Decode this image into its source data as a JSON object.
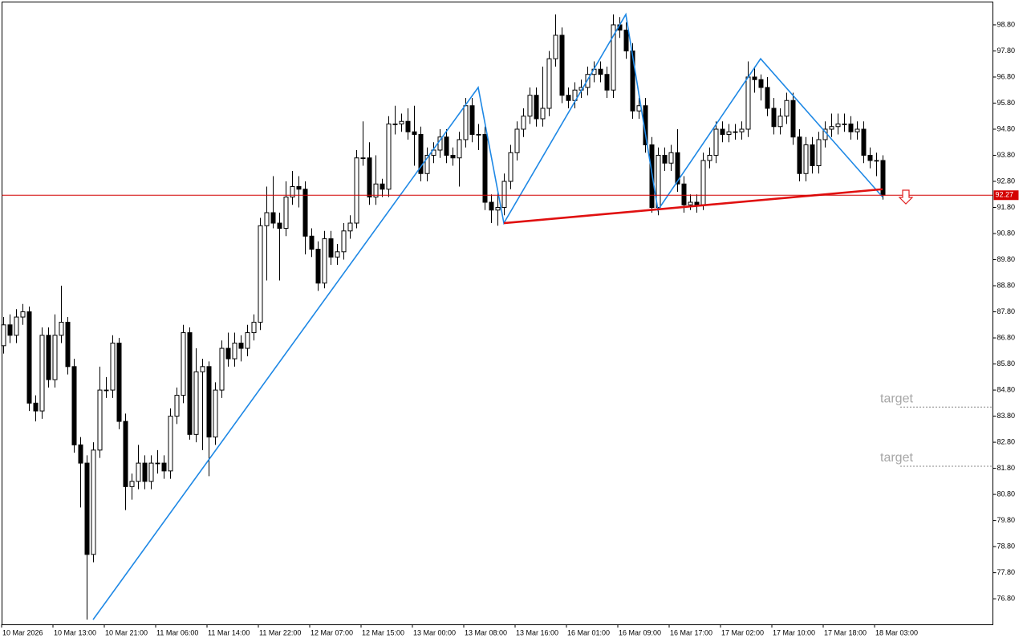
{
  "chart_data": {
    "type": "candlestick",
    "candle_color": "#000000",
    "categories": [
      "10 Mar 2026",
      null,
      null,
      null,
      null,
      null,
      null,
      null,
      "10 Mar 13:00",
      null,
      null,
      null,
      null,
      null,
      null,
      null,
      "10 Mar 21:00",
      null,
      null,
      null,
      null,
      null,
      null,
      null,
      "11 Mar 06:00",
      null,
      null,
      null,
      null,
      null,
      null,
      null,
      "11 Mar 14:00",
      null,
      null,
      null,
      null,
      null,
      null,
      null,
      "11 Mar 22:00",
      null,
      null,
      null,
      null,
      null,
      null,
      null,
      "12 Mar 07:00",
      null,
      null,
      null,
      null,
      null,
      null,
      null,
      "12 Mar 15:00",
      null,
      null,
      null,
      null,
      null,
      null,
      null,
      "13 Mar 00:00",
      null,
      null,
      null,
      null,
      null,
      null,
      null,
      "13 Mar 08:00",
      null,
      null,
      null,
      null,
      null,
      null,
      null,
      "13 Mar 16:00",
      null,
      null,
      null,
      null,
      null,
      null,
      null,
      "16 Mar 01:00",
      null,
      null,
      null,
      null,
      null,
      null,
      null,
      "16 Mar 09:00",
      null,
      null,
      null,
      null,
      null,
      null,
      null,
      "16 Mar 17:00",
      null,
      null,
      null,
      null,
      null,
      null,
      null,
      "17 Mar 02:00",
      null,
      null,
      null,
      null,
      null,
      null,
      null,
      "17 Mar 10:00",
      null,
      null,
      null,
      null,
      null,
      null,
      null,
      "17 Mar 18:00",
      null,
      null,
      null,
      null,
      null,
      null,
      null,
      "18 Mar 03:00",
      null
    ],
    "open": [
      86.5,
      87.3,
      86.9,
      87.6,
      87.8,
      84.3,
      84.0,
      86.9,
      85.2,
      86.9,
      87.4,
      85.7,
      82.7,
      82.0,
      78.5,
      82.5,
      84.8,
      84.8,
      86.6,
      83.6,
      81.1,
      81.3,
      82.0,
      81.3,
      82.0,
      82.0,
      81.7,
      83.8,
      84.6,
      87.0,
      83.1,
      85.5,
      85.7,
      83.0,
      84.8,
      86.4,
      86.0,
      86.6,
      86.4,
      87.0,
      87.4,
      91.1,
      91.6,
      91.2,
      91.0,
      92.2,
      92.6,
      92.5,
      90.7,
      90.2,
      88.9,
      90.6,
      89.9,
      90.1,
      90.9,
      91.2,
      93.7,
      93.7,
      92.2,
      92.7,
      92.5,
      95.0,
      95.0,
      95.1,
      94.7,
      94.6,
      93.1,
      93.8,
      94.0,
      94.5,
      93.8,
      93.7,
      94.4,
      95.7,
      94.6,
      94.6,
      92.0,
      91.7,
      91.8,
      92.8,
      93.9,
      94.8,
      95.3,
      96.1,
      95.2,
      95.6,
      97.5,
      98.4,
      96.1,
      95.9,
      96.3,
      96.4,
      96.9,
      97.1,
      96.9,
      96.3,
      98.8,
      98.6,
      97.8,
      95.5,
      95.7,
      94.2,
      91.8,
      93.8,
      93.5,
      93.9,
      92.7,
      91.9,
      92.0,
      91.9,
      93.6,
      93.8,
      94.8,
      94.6,
      94.7,
      94.7,
      94.8,
      96.8,
      96.7,
      96.4,
      95.6,
      94.9,
      95.3,
      95.9,
      94.5,
      93.1,
      94.2,
      93.4,
      94.4,
      94.8,
      94.9,
      95.0,
      95.0,
      94.7,
      94.8,
      93.8,
      93.6,
      93.6
    ],
    "high": [
      87.6,
      87.7,
      87.9,
      88.1,
      88.0,
      84.6,
      87.2,
      87.2,
      87.7,
      88.8,
      87.6,
      86.0,
      83.0,
      82.3,
      82.8,
      85.7,
      85.3,
      86.9,
      86.8,
      83.9,
      81.6,
      82.7,
      82.3,
      82.3,
      82.5,
      82.3,
      84.1,
      84.9,
      87.3,
      87.2,
      86.4,
      86.0,
      85.9,
      85.1,
      86.7,
      87.0,
      87.0,
      86.9,
      87.3,
      87.7,
      91.4,
      92.6,
      93.0,
      91.6,
      92.8,
      93.2,
      93.0,
      92.8,
      91.0,
      90.5,
      90.9,
      90.9,
      90.4,
      91.2,
      91.5,
      94.0,
      95.1,
      94.3,
      93.8,
      92.9,
      95.3,
      95.7,
      95.4,
      95.6,
      95.7,
      94.9,
      94.1,
      94.3,
      94.8,
      94.8,
      94.1,
      94.7,
      96.0,
      96.0,
      95.0,
      94.9,
      92.3,
      92.4,
      93.1,
      94.2,
      95.1,
      95.6,
      96.4,
      96.4,
      97.2,
      97.8,
      99.2,
      98.7,
      96.4,
      96.6,
      96.7,
      97.2,
      97.4,
      97.4,
      97.2,
      99.2,
      99.1,
      98.9,
      98.1,
      96.0,
      96.0,
      94.5,
      94.1,
      94.1,
      94.2,
      94.8,
      93.0,
      92.3,
      92.3,
      93.9,
      94.1,
      95.1,
      95.1,
      95.0,
      95.0,
      95.1,
      97.4,
      97.2,
      96.9,
      96.8,
      96.0,
      95.6,
      96.2,
      96.2,
      94.8,
      94.5,
      94.5,
      94.7,
      95.1,
      95.4,
      95.4,
      95.4,
      95.3,
      95.1,
      95.1,
      94.1,
      93.9,
      93.8
    ],
    "low": [
      86.2,
      86.6,
      86.6,
      87.3,
      84.0,
      83.6,
      83.7,
      84.9,
      84.9,
      86.6,
      85.4,
      82.4,
      80.3,
      76.0,
      78.2,
      82.2,
      84.5,
      84.5,
      83.3,
      80.2,
      80.6,
      81.0,
      81.0,
      81.0,
      81.6,
      81.4,
      81.4,
      83.5,
      84.3,
      82.9,
      82.8,
      82.5,
      81.5,
      82.7,
      84.5,
      85.7,
      85.7,
      85.9,
      86.1,
      86.7,
      87.1,
      89.0,
      91.0,
      89.0,
      90.7,
      91.9,
      91.8,
      90.0,
      89.9,
      88.6,
      88.7,
      89.6,
      89.6,
      89.8,
      90.6,
      91.0,
      93.4,
      91.9,
      91.9,
      92.2,
      92.2,
      94.6,
      94.7,
      94.4,
      93.4,
      92.8,
      92.8,
      93.5,
      93.7,
      93.5,
      93.4,
      92.6,
      94.1,
      94.3,
      94.0,
      91.7,
      91.2,
      91.1,
      91.5,
      92.5,
      93.6,
      94.5,
      95.0,
      94.9,
      94.9,
      95.3,
      97.2,
      95.8,
      95.6,
      95.6,
      96.0,
      96.1,
      96.6,
      96.6,
      96.0,
      96.0,
      98.3,
      97.5,
      95.2,
      95.2,
      93.9,
      91.6,
      91.5,
      93.2,
      93.2,
      92.4,
      91.6,
      91.7,
      91.6,
      91.7,
      93.3,
      93.5,
      94.3,
      94.3,
      94.4,
      94.4,
      94.5,
      96.2,
      95.9,
      95.3,
      94.6,
      94.6,
      95.0,
      94.2,
      92.8,
      92.8,
      93.1,
      93.1,
      94.1,
      94.5,
      94.6,
      94.7,
      94.4,
      94.4,
      93.5,
      93.3,
      93.0,
      92.1
    ],
    "close": [
      87.3,
      86.9,
      87.6,
      87.8,
      84.3,
      84.0,
      86.9,
      85.2,
      86.9,
      87.4,
      85.7,
      82.7,
      82.0,
      78.5,
      82.5,
      84.8,
      84.8,
      86.6,
      83.6,
      81.1,
      81.3,
      82.0,
      81.3,
      82.0,
      82.0,
      81.7,
      83.8,
      84.6,
      87.0,
      83.1,
      85.5,
      85.7,
      83.0,
      84.8,
      86.4,
      86.0,
      86.6,
      86.4,
      87.0,
      87.4,
      91.1,
      91.6,
      91.2,
      91.0,
      92.2,
      92.6,
      92.5,
      90.7,
      90.2,
      88.9,
      90.6,
      89.9,
      90.1,
      90.9,
      91.2,
      93.7,
      93.7,
      92.2,
      92.7,
      92.5,
      95.0,
      95.0,
      95.1,
      94.7,
      94.6,
      93.1,
      93.8,
      94.0,
      94.5,
      93.8,
      93.7,
      94.4,
      95.7,
      94.6,
      94.6,
      92.0,
      91.7,
      91.8,
      92.8,
      93.9,
      94.8,
      95.3,
      96.1,
      95.2,
      95.6,
      97.5,
      98.4,
      96.1,
      95.9,
      96.3,
      96.4,
      96.9,
      97.1,
      96.9,
      96.3,
      98.8,
      98.6,
      97.8,
      95.5,
      95.7,
      94.2,
      91.8,
      93.8,
      93.5,
      93.9,
      92.7,
      91.9,
      92.0,
      91.9,
      93.6,
      93.8,
      94.8,
      94.6,
      94.7,
      94.7,
      94.8,
      96.8,
      96.7,
      96.4,
      95.6,
      94.9,
      95.3,
      95.9,
      94.5,
      93.1,
      94.2,
      93.4,
      94.4,
      94.8,
      94.9,
      95.0,
      95.0,
      94.7,
      94.8,
      93.8,
      93.6,
      93.6,
      92.27
    ],
    "ylim": [
      75.82,
      99.66
    ],
    "yticks": [
      {
        "value": 98.8,
        "label": "98.80"
      },
      {
        "value": 97.8,
        "label": "97.80"
      },
      {
        "value": 96.8,
        "label": "96.80"
      },
      {
        "value": 95.8,
        "label": "95.80"
      },
      {
        "value": 94.8,
        "label": "94.80"
      },
      {
        "value": 93.8,
        "label": "93.80"
      },
      {
        "value": 92.8,
        "label": "92.80"
      },
      {
        "value": 91.8,
        "label": "91.80"
      },
      {
        "value": 90.8,
        "label": "90.80"
      },
      {
        "value": 89.8,
        "label": "89.80"
      },
      {
        "value": 88.8,
        "label": "88.80"
      },
      {
        "value": 87.8,
        "label": "87.80"
      },
      {
        "value": 86.8,
        "label": "86.80"
      },
      {
        "value": 85.8,
        "label": "85.80"
      },
      {
        "value": 84.8,
        "label": "84.80"
      },
      {
        "value": 83.8,
        "label": "83.80"
      },
      {
        "value": 82.8,
        "label": "82.80"
      },
      {
        "value": 81.8,
        "label": "81.80"
      },
      {
        "value": 80.8,
        "label": "80.80"
      },
      {
        "value": 79.8,
        "label": "79.80"
      },
      {
        "value": 78.8,
        "label": "78.80"
      },
      {
        "value": 77.8,
        "label": "77.80"
      },
      {
        "value": 76.8,
        "label": "76.80"
      }
    ],
    "zigzag": {
      "color": "#1e88e5",
      "x": [
        14,
        74,
        78,
        97,
        102,
        118,
        137
      ],
      "values": [
        76.0,
        96.4,
        91.2,
        99.2,
        91.7,
        97.5,
        92.2
      ]
    },
    "neckline": {
      "color": "#e01010",
      "x": [
        78,
        137
      ],
      "values": [
        91.2,
        92.5
      ]
    },
    "price_line": {
      "value": 92.27,
      "color": "#d40000"
    },
    "annotations": [
      {
        "text": "target",
        "value": 84.15
      },
      {
        "text": "target",
        "value": 81.88
      }
    ]
  }
}
